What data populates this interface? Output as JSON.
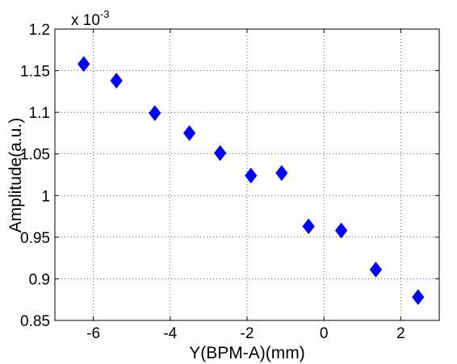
{
  "chart_data": {
    "type": "scatter",
    "title": "",
    "xlabel": "Y(BPM-A)(mm)",
    "ylabel": "Amplitude(a.u.)",
    "y_multiplier": {
      "base": "x 10",
      "exponent": "-3"
    },
    "xlim": [
      -7,
      3
    ],
    "ylim": [
      0.85,
      1.2
    ],
    "x_ticks": [
      -6,
      -4,
      -2,
      0,
      2
    ],
    "y_ticks": [
      0.85,
      0.9,
      0.95,
      1,
      1.05,
      1.1,
      1.15,
      1.2
    ],
    "x_tick_labels": [
      "-6",
      "-4",
      "-2",
      "0",
      "2"
    ],
    "y_tick_labels": [
      "0.85",
      "0.9",
      "0.95",
      "1",
      "1.05",
      "1.1",
      "1.15",
      "1.2"
    ],
    "grid": true,
    "marker": "diamond",
    "marker_color": "#0000ff",
    "series": [
      {
        "x": [
          -6.25,
          -5.4,
          -4.4,
          -3.5,
          -2.7,
          -1.9,
          -1.1,
          -0.4,
          0.45,
          1.35,
          2.45
        ],
        "y": [
          1.158,
          1.138,
          1.099,
          1.075,
          1.051,
          1.024,
          1.027,
          0.963,
          0.958,
          0.911,
          0.878
        ]
      }
    ]
  }
}
